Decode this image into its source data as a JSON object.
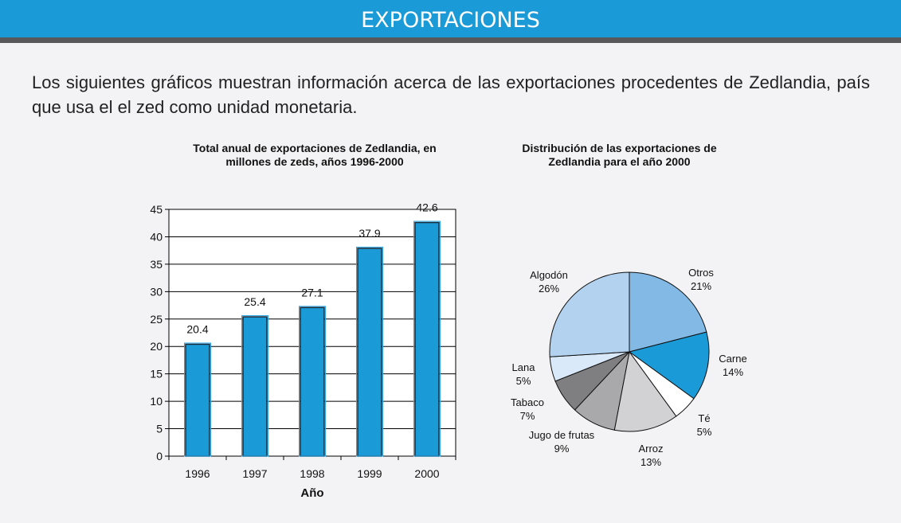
{
  "header": {
    "title": "EXPORTACIONES"
  },
  "intro": "Los siguientes gráficos muestran información acerca de las exportaciones procedentes de Zedlandia, país que usa el el zed como unidad monetaria.",
  "colors": {
    "header": "#1a9ad6",
    "bar": "#1a9ad6"
  },
  "chart_data": [
    {
      "type": "bar",
      "title": "Total anual de exportaciones de Zedlandia, en millones de zeds, años 1996-2000",
      "xlabel": "Año",
      "ylabel": "",
      "categories": [
        "1996",
        "1997",
        "1998",
        "1999",
        "2000"
      ],
      "values": [
        20.4,
        25.4,
        27.1,
        37.9,
        42.6
      ],
      "data_labels": [
        "20.4",
        "25.4",
        "27.1",
        "37.9",
        "42.6"
      ],
      "ylim": [
        0,
        45
      ],
      "yticks": [
        0,
        5,
        10,
        15,
        20,
        25,
        30,
        35,
        40,
        45
      ],
      "grid": true
    },
    {
      "type": "pie",
      "title": "Distribución de las exportaciones  de Zedlandia para el año 2000",
      "slices": [
        {
          "label": "Otros",
          "value": 21,
          "pct": "21%",
          "color": "#82b9e5"
        },
        {
          "label": "Carne",
          "value": 14,
          "pct": "14%",
          "color": "#1a9ad6"
        },
        {
          "label": "Té",
          "value": 5,
          "pct": "5%",
          "color": "#ffffff"
        },
        {
          "label": "Arroz",
          "value": 13,
          "pct": "13%",
          "color": "#d2d2d4"
        },
        {
          "label": "Jugo de frutas",
          "value": 9,
          "pct": "9%",
          "color": "#a9a9ab"
        },
        {
          "label": "Tabaco",
          "value": 7,
          "pct": "7%",
          "color": "#7f7f82"
        },
        {
          "label": "Lana",
          "value": 5,
          "pct": "5%",
          "color": "#d9e9f9"
        },
        {
          "label": "Algodón",
          "value": 26,
          "pct": "26%",
          "color": "#b2d2f0"
        }
      ]
    }
  ]
}
